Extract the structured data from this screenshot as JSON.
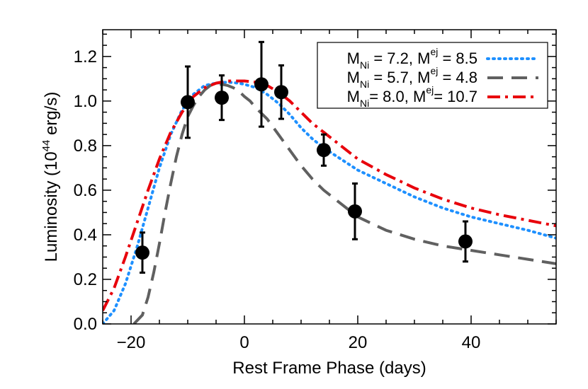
{
  "chart_data": {
    "type": "line",
    "xlabel": "Rest Frame Phase (days)",
    "ylabel_prefix": "Luminosity (10",
    "ylabel_exp": "44",
    "ylabel_suffix": " erg/s)",
    "xlim": [
      -25,
      55
    ],
    "ylim": [
      0.0,
      1.32
    ],
    "xticks": [
      -20,
      0,
      20,
      40
    ],
    "yticks": [
      0.0,
      0.2,
      0.4,
      0.6,
      0.8,
      1.0,
      1.2
    ],
    "ytick_labels": [
      "0.0",
      "0.2",
      "0.4",
      "0.6",
      "0.8",
      "1.0",
      "1.2"
    ],
    "xtick_labels": [
      "−20",
      "0",
      "20",
      "40"
    ],
    "legend_position": "top-right",
    "series": [
      {
        "name": "M_Ni = 7.2, M_ej = 8.5",
        "label_parts": [
          "M",
          "Ni",
          " = 7.2, M",
          "ej",
          " = 8.5"
        ],
        "color": "#1e90ff",
        "style": "dotted",
        "x": [
          -25,
          -23,
          -21,
          -19,
          -17,
          -15,
          -13,
          -11,
          -9,
          -7,
          -5,
          -3,
          -1,
          0,
          2,
          4,
          6,
          8,
          10,
          12,
          14,
          17,
          20,
          25,
          30,
          35,
          40,
          45,
          50,
          55
        ],
        "y": [
          0.0,
          0.06,
          0.18,
          0.34,
          0.52,
          0.7,
          0.85,
          0.96,
          1.03,
          1.07,
          1.08,
          1.085,
          1.08,
          1.075,
          1.06,
          1.03,
          0.99,
          0.94,
          0.88,
          0.83,
          0.79,
          0.74,
          0.69,
          0.63,
          0.57,
          0.52,
          0.48,
          0.45,
          0.42,
          0.385
        ]
      },
      {
        "name": "M_Ni = 5.7, M_ej = 4.8",
        "label_parts": [
          "M",
          "Ni",
          " = 5.7, M",
          "ej",
          " = 4.8"
        ],
        "color": "#606060",
        "style": "dashed",
        "x": [
          -19.5,
          -18,
          -17,
          -16,
          -15,
          -14,
          -13,
          -12,
          -11,
          -10,
          -9,
          -8,
          -7,
          -6,
          -5,
          -4,
          -3,
          -2,
          -1,
          0,
          1,
          2,
          4,
          6,
          8,
          10,
          12,
          14,
          17,
          20,
          25,
          30,
          35,
          40,
          45,
          50,
          55
        ],
        "y": [
          0.0,
          0.04,
          0.12,
          0.23,
          0.36,
          0.5,
          0.63,
          0.75,
          0.85,
          0.93,
          0.98,
          1.02,
          1.05,
          1.07,
          1.075,
          1.075,
          1.07,
          1.06,
          1.045,
          1.02,
          1.0,
          0.97,
          0.92,
          0.85,
          0.78,
          0.71,
          0.65,
          0.6,
          0.54,
          0.48,
          0.42,
          0.38,
          0.35,
          0.33,
          0.31,
          0.29,
          0.27
        ]
      },
      {
        "name": "M_Ni = 8.0, M_ej = 10.7",
        "label_parts": [
          "M",
          "Ni",
          "= 8.0, M",
          "ej",
          "= 10.7"
        ],
        "color": "#e8000b",
        "style": "dashdot",
        "x": [
          -25,
          -23,
          -21,
          -19,
          -17,
          -15,
          -13,
          -11,
          -9,
          -7,
          -5,
          -3,
          -1,
          0,
          2,
          4,
          6,
          8,
          10,
          12,
          14,
          17,
          20,
          25,
          30,
          35,
          40,
          45,
          50,
          55
        ],
        "y": [
          0.06,
          0.16,
          0.3,
          0.45,
          0.6,
          0.74,
          0.86,
          0.95,
          1.02,
          1.06,
          1.08,
          1.09,
          1.09,
          1.09,
          1.085,
          1.07,
          1.04,
          1.0,
          0.95,
          0.9,
          0.86,
          0.8,
          0.74,
          0.67,
          0.61,
          0.56,
          0.52,
          0.49,
          0.465,
          0.44
        ]
      }
    ],
    "observations": {
      "x": [
        -18,
        -10,
        -4,
        3,
        6.5,
        14,
        19.5,
        39
      ],
      "y": [
        0.32,
        0.995,
        1.015,
        1.075,
        1.04,
        0.78,
        0.505,
        0.37
      ],
      "err": [
        0.09,
        0.16,
        0.1,
        0.19,
        0.12,
        0.07,
        0.125,
        0.09
      ],
      "color": "#000000"
    }
  }
}
